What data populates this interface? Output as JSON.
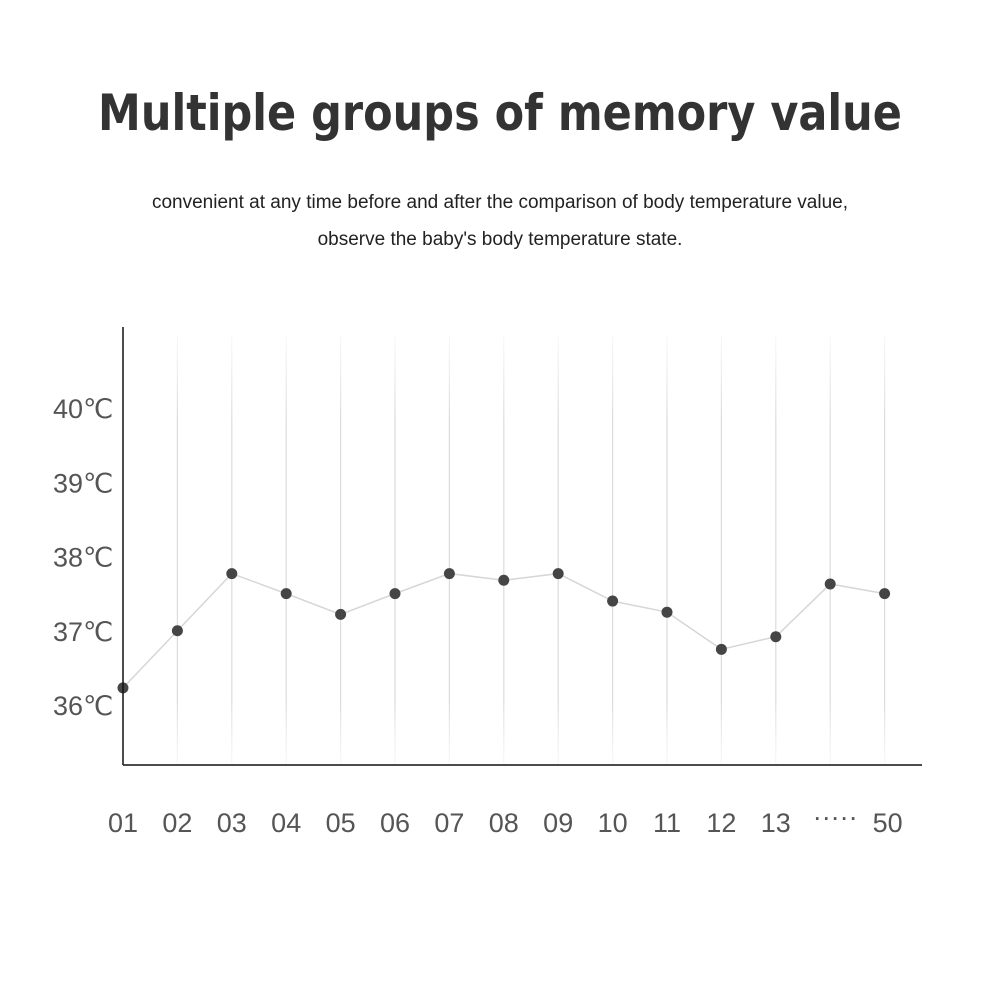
{
  "header": {
    "title": "Multiple groups of memory value",
    "subtitle_line1": "convenient at any time before and after the comparison of body temperature value,",
    "subtitle_line2": "observe the baby's body temperature state."
  },
  "chart_data": {
    "type": "line",
    "title": "Multiple groups of memory value",
    "xlabel": "",
    "ylabel": "",
    "categories": [
      "01",
      "02",
      "03",
      "04",
      "05",
      "06",
      "07",
      "08",
      "09",
      "10",
      "11",
      "12",
      "13",
      "·····",
      "50"
    ],
    "values": [
      36.23,
      37.0,
      37.77,
      37.5,
      37.22,
      37.5,
      37.77,
      37.68,
      37.77,
      37.4,
      37.25,
      36.75,
      36.92,
      37.63,
      37.5
    ],
    "y_ticks": [
      36,
      37,
      38,
      39,
      40
    ],
    "y_tick_labels": [
      "36℃",
      "37℃",
      "38℃",
      "39℃",
      "40℃"
    ],
    "ylim": [
      35.22,
      41.1
    ],
    "grid": "vertical",
    "colors": {
      "line": "#d6d6d6",
      "point": "#454545",
      "axis": "#111111",
      "grid": "#e2e2e2"
    }
  }
}
